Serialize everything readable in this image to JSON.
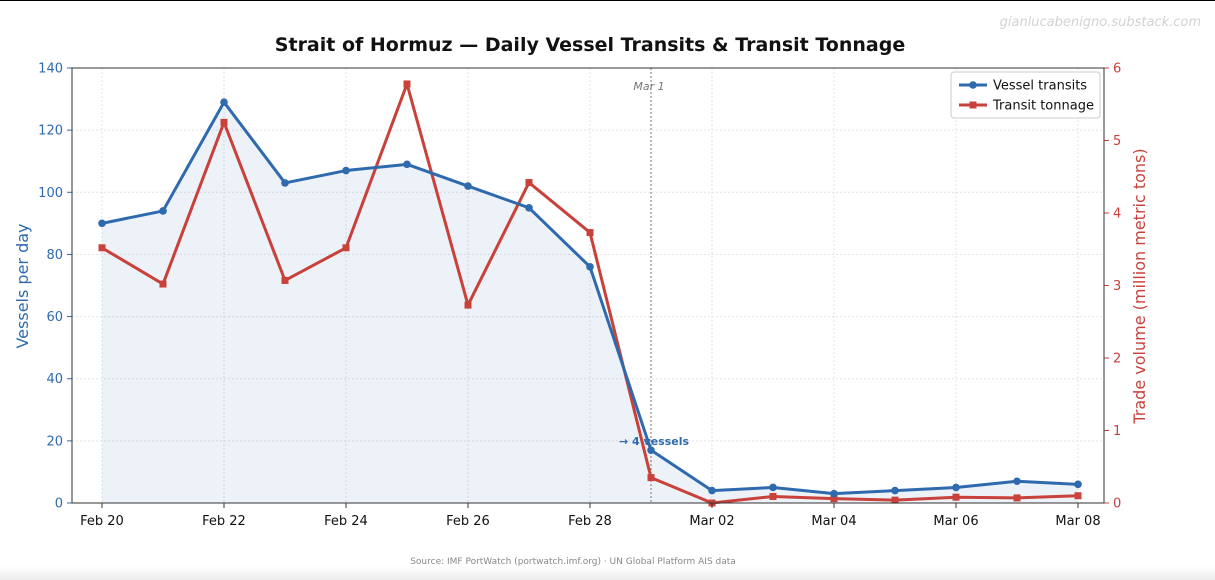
{
  "watermark": "gianlucabenigno.substack.com",
  "source": "Source: IMF PortWatch (portwatch.imf.org) · UN Global Platform AIS data",
  "chart_data": {
    "type": "line",
    "title": "Strait of Hormuz — Daily Vessel Transits & Transit Tonnage",
    "x": [
      "2026-02-20",
      "2026-02-21",
      "2026-02-22",
      "2026-02-23",
      "2026-02-24",
      "2026-02-25",
      "2026-02-26",
      "2026-02-27",
      "2026-02-28",
      "2026-03-01",
      "2026-03-02",
      "2026-03-03",
      "2026-03-04",
      "2026-03-05",
      "2026-03-06",
      "2026-03-07",
      "2026-03-08"
    ],
    "x_tick_labels": [
      "Feb 20",
      "Feb 22",
      "Feb 24",
      "Feb 26",
      "Feb 28",
      "Mar 02",
      "Mar 04",
      "Mar 06",
      "Mar 08"
    ],
    "x_tick_index": [
      0,
      2,
      4,
      6,
      8,
      10,
      12,
      14,
      16
    ],
    "ylabel": "Vessels per day",
    "y2label": "Trade volume (million metric tons)",
    "ylim": [
      0,
      140
    ],
    "y2lim": [
      0,
      6
    ],
    "y_ticks": [
      "0",
      "20",
      "40",
      "60",
      "80",
      "100",
      "120",
      "140"
    ],
    "y2_ticks": [
      "0",
      "1",
      "2",
      "3",
      "4",
      "5",
      "6"
    ],
    "grid": true,
    "legend_position": "top-right",
    "series": [
      {
        "name": "Vessel transits",
        "axis": "left",
        "color": "#2e6aad",
        "marker": "circle",
        "fill_area": true,
        "values": [
          90,
          94,
          129,
          103,
          107,
          109,
          102,
          95,
          76,
          17,
          4,
          5,
          3,
          4,
          5,
          7,
          6
        ]
      },
      {
        "name": "Transit tonnage",
        "axis": "right",
        "color": "#c8413a",
        "marker": "square",
        "values": [
          3.52,
          3.02,
          5.25,
          3.07,
          3.52,
          5.78,
          2.73,
          4.42,
          3.73,
          0.35,
          0.0,
          0.09,
          0.06,
          0.04,
          0.08,
          0.07,
          0.1
        ]
      }
    ],
    "annotations": [
      {
        "id": "vline",
        "x_index": 9,
        "text": "Mar 1",
        "style": "vertical-dotted-line"
      },
      {
        "id": "point",
        "x_index": 9,
        "y": 17,
        "text": "→ 4 vessels"
      }
    ]
  }
}
